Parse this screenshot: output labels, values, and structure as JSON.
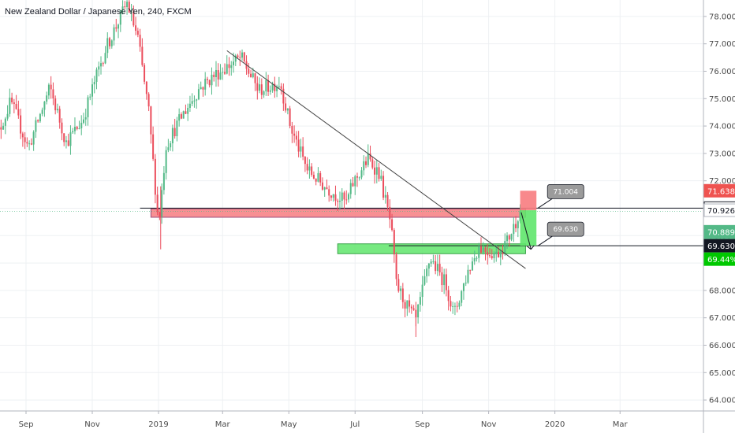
{
  "header": {
    "title": "New Zealand Dollar / Japanese Yen, 240, FXCM"
  },
  "colors": {
    "bull": "#53b987",
    "bear": "#eb4d5c",
    "resistance_zone": "#f77c80",
    "support_zone": "#5fe56b",
    "stop_box": "#f77c80",
    "target_box": "#5fe56b",
    "trendline": "#444444",
    "grid": "#eef0f3",
    "axis": "#b2b5be"
  },
  "chart_data": {
    "type": "candlestick",
    "title": "New Zealand Dollar / Japanese Yen, 240, FXCM",
    "xlabel": "",
    "ylabel": "",
    "x_ticks": [
      "Sep",
      "Nov",
      "2019",
      "Mar",
      "May",
      "Jul",
      "Sep",
      "Nov",
      "2020",
      "Mar"
    ],
    "y_ticks": [
      "64.000",
      "65.000",
      "66.000",
      "67.000",
      "68.000",
      "69.000",
      "70.000",
      "71.000",
      "72.000",
      "73.000",
      "74.000",
      "75.000",
      "76.000",
      "77.000",
      "78.000"
    ],
    "ylim": [
      63.6,
      78.6
    ],
    "grid": true,
    "price_path_anchors": [
      {
        "date": "2018-08-01",
        "price": 73.0
      },
      {
        "date": "2018-08-20",
        "price": 74.9
      },
      {
        "date": "2018-09-05",
        "price": 73.2
      },
      {
        "date": "2018-09-25",
        "price": 75.4
      },
      {
        "date": "2018-10-10",
        "price": 73.4
      },
      {
        "date": "2018-10-25",
        "price": 74.2
      },
      {
        "date": "2018-11-05",
        "price": 75.6
      },
      {
        "date": "2018-11-15",
        "price": 76.8
      },
      {
        "date": "2018-12-05",
        "price": 78.5
      },
      {
        "date": "2018-12-15",
        "price": 77.2
      },
      {
        "date": "2018-12-25",
        "price": 74.5
      },
      {
        "date": "2019-01-03",
        "price": 70.4
      },
      {
        "date": "2019-01-10",
        "price": 73.3
      },
      {
        "date": "2019-01-25",
        "price": 74.4
      },
      {
        "date": "2019-02-10",
        "price": 75.4
      },
      {
        "date": "2019-02-25",
        "price": 75.9
      },
      {
        "date": "2019-03-20",
        "price": 76.5
      },
      {
        "date": "2019-04-05",
        "price": 75.3
      },
      {
        "date": "2019-04-25",
        "price": 75.6
      },
      {
        "date": "2019-05-05",
        "price": 73.9
      },
      {
        "date": "2019-05-20",
        "price": 72.4
      },
      {
        "date": "2019-06-05",
        "price": 71.8
      },
      {
        "date": "2019-06-25",
        "price": 71.2
      },
      {
        "date": "2019-07-01",
        "price": 71.9
      },
      {
        "date": "2019-07-15",
        "price": 72.8
      },
      {
        "date": "2019-07-25",
        "price": 72.3
      },
      {
        "date": "2019-08-05",
        "price": 70.4
      },
      {
        "date": "2019-08-10",
        "price": 68.2
      },
      {
        "date": "2019-08-20",
        "price": 67.4
      },
      {
        "date": "2019-08-28",
        "price": 66.9
      },
      {
        "date": "2019-09-10",
        "price": 69.2
      },
      {
        "date": "2019-09-25",
        "price": 68.2
      },
      {
        "date": "2019-10-02",
        "price": 67.1
      },
      {
        "date": "2019-10-15",
        "price": 68.7
      },
      {
        "date": "2019-10-25",
        "price": 69.6
      },
      {
        "date": "2019-11-10",
        "price": 69.3
      },
      {
        "date": "2019-11-20",
        "price": 69.8
      },
      {
        "date": "2019-11-28",
        "price": 70.5
      },
      {
        "date": "2019-12-01",
        "price": 70.9
      }
    ],
    "trendline": {
      "start": {
        "date": "2019-03-05",
        "price": 76.75
      },
      "end": {
        "date": "2019-12-05",
        "price": 68.8
      }
    },
    "resistance_zone": {
      "start": "2018-12-25",
      "end": "2019-12-05",
      "low": 70.67,
      "high": 70.98
    },
    "support_zone": {
      "start": "2019-06-15",
      "end": "2019-12-05",
      "low": 69.34,
      "high": 69.7
    },
    "horizontal_lines": [
      71.004,
      69.63
    ],
    "position": {
      "start": "2019-11-30",
      "end": "2019-12-15",
      "stop_high": 71.638,
      "entry": 70.926,
      "target": 69.63,
      "arrow_from": {
        "date": "2019-12-01",
        "price": 70.85
      },
      "arrow_to": {
        "date": "2019-12-10",
        "price": 69.5
      }
    },
    "callouts": [
      {
        "text": "71.004",
        "price": 71.004
      },
      {
        "text": "69.630",
        "price": 69.63
      }
    ],
    "price_scale_badges": [
      {
        "text": "71.638",
        "price": 71.638,
        "bg": "#ef5350",
        "fg": "#ffffff"
      },
      {
        "text": "71.004",
        "price": 71.004,
        "bg": "#ffffff",
        "fg": "#131722",
        "border": "#131722"
      },
      {
        "text": "70.926",
        "price": 70.926,
        "bg": "#ffffff",
        "fg": "#131722",
        "border": "#b2b5be"
      },
      {
        "text": "70.889",
        "price": 70.889,
        "bg": "#53b987",
        "fg": "#ffffff",
        "offset": 26
      },
      {
        "text": "01:08:22",
        "price": 70.889,
        "bg": "#53b987",
        "fg": "#ffffff",
        "offset": 43
      },
      {
        "text": "69.630",
        "price": 69.63,
        "bg": "#131722",
        "fg": "#ffffff"
      },
      {
        "text": "69.44%",
        "price": 69.63,
        "bg": "#00c800",
        "fg": "#ffffff",
        "offset": 17
      }
    ]
  }
}
